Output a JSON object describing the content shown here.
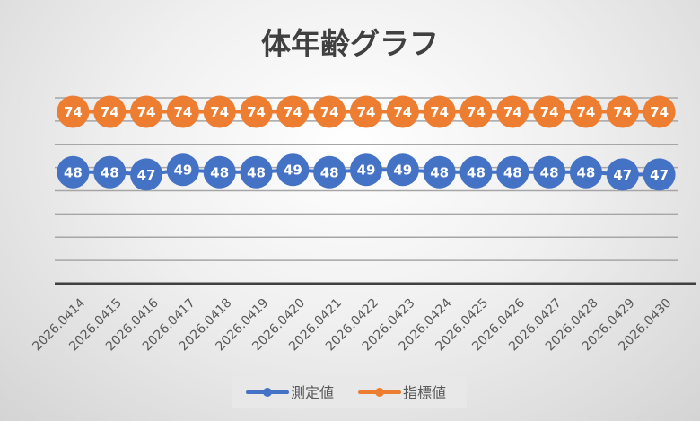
{
  "chart_data": {
    "type": "line",
    "title": "体年齢グラフ",
    "categories": [
      "2026.0414",
      "2026.0415",
      "2026.0416",
      "2026.0417",
      "2026.0418",
      "2026.0419",
      "2026.0420",
      "2026.0421",
      "2026.0422",
      "2026.0423",
      "2026.0424",
      "2026.0425",
      "2026.0426",
      "2026.0427",
      "2026.0428",
      "2026.0429",
      "2026.0430"
    ],
    "series": [
      {
        "name": "測定値",
        "color": "#4472C4",
        "values": [
          48,
          48,
          47,
          49,
          48,
          48,
          49,
          48,
          49,
          49,
          48,
          48,
          48,
          48,
          48,
          47,
          47
        ]
      },
      {
        "name": "指標値",
        "color": "#ED7D31",
        "values": [
          74,
          74,
          74,
          74,
          74,
          74,
          74,
          74,
          74,
          74,
          74,
          74,
          74,
          74,
          74,
          74,
          74
        ]
      }
    ],
    "ylim": [
      0,
      80
    ],
    "grid": true,
    "y_tick_labels_shown": false,
    "data_labels": true,
    "legend": "bottom"
  }
}
